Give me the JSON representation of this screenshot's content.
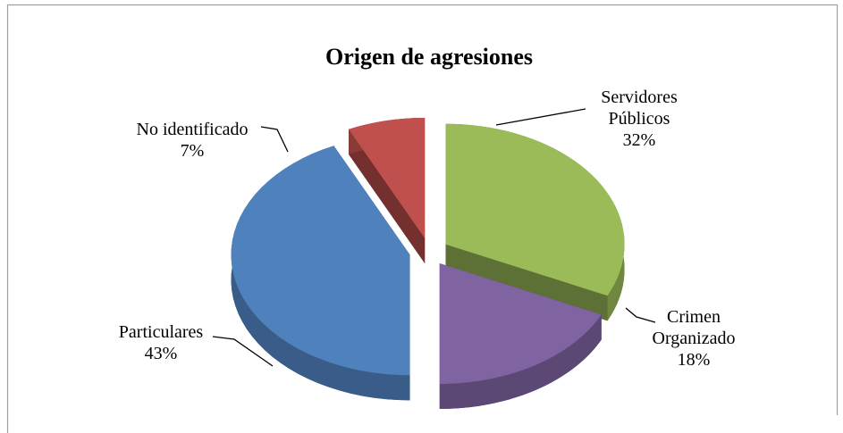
{
  "chart_data": {
    "type": "pie",
    "title": "Origen de agresiones",
    "categories": [
      "Servidores Públicos",
      "Crimen Organizado",
      "Particulares",
      "No identificado"
    ],
    "values": [
      32,
      18,
      43,
      7
    ],
    "value_labels": [
      "32%",
      "18%",
      "43%",
      "7%"
    ],
    "colors": [
      "#9bbb59",
      "#8064a2",
      "#4f81bd",
      "#c0504d"
    ]
  }
}
